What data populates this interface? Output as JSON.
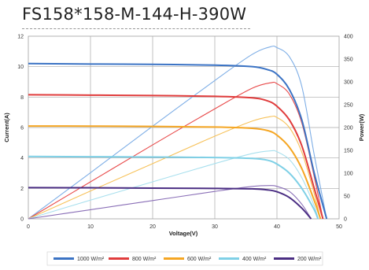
{
  "title": "FS158*158-M-144-H-390W",
  "chart_data": {
    "type": "line",
    "xlabel": "Voltage(V)",
    "ylabel_left": "Current(A)",
    "ylabel_right": "Power(W)",
    "xlim": [
      0,
      50
    ],
    "ylim_left": [
      0,
      12
    ],
    "ylim_right": [
      0,
      400
    ],
    "x_ticks": [
      0,
      10,
      20,
      30,
      40,
      50
    ],
    "y_ticks_left": [
      0,
      2,
      4,
      6,
      8,
      10,
      12
    ],
    "y_ticks_right": [
      0,
      50,
      100,
      150,
      200,
      250,
      300,
      350,
      400
    ],
    "grid": true,
    "legend_position": "bottom",
    "series": [
      {
        "name": "1000 W/m²",
        "color": "#3b73c4",
        "power_color": "#7eaee6",
        "current": [
          [
            0,
            10.2
          ],
          [
            10,
            10.17
          ],
          [
            20,
            10.15
          ],
          [
            30,
            10.1
          ],
          [
            36,
            10.0
          ],
          [
            38.5,
            9.8
          ],
          [
            40,
            9.5
          ],
          [
            42,
            8.5
          ],
          [
            44,
            6.5
          ],
          [
            46,
            3.0
          ],
          [
            48,
            0
          ]
        ],
        "power": [
          [
            0,
            0
          ],
          [
            10,
            101
          ],
          [
            20,
            203
          ],
          [
            30,
            303
          ],
          [
            36,
            360
          ],
          [
            39,
            377
          ],
          [
            40,
            375
          ],
          [
            42,
            355
          ],
          [
            44,
            290
          ],
          [
            46,
            140
          ],
          [
            48,
            0
          ]
        ]
      },
      {
        "name": "800 W/m²",
        "color": "#e03c3c",
        "power_color": "#e84a4a",
        "current": [
          [
            0,
            8.15
          ],
          [
            10,
            8.13
          ],
          [
            20,
            8.1
          ],
          [
            30,
            8.05
          ],
          [
            36,
            7.95
          ],
          [
            38.5,
            7.75
          ],
          [
            40,
            7.4
          ],
          [
            42,
            6.5
          ],
          [
            44,
            4.8
          ],
          [
            46,
            2.0
          ],
          [
            47.4,
            0
          ]
        ],
        "power": [
          [
            0,
            0
          ],
          [
            10,
            81
          ],
          [
            20,
            162
          ],
          [
            30,
            241
          ],
          [
            36,
            286
          ],
          [
            39,
            298
          ],
          [
            40,
            296
          ],
          [
            42,
            273
          ],
          [
            44,
            210
          ],
          [
            46,
            92
          ],
          [
            47.4,
            0
          ]
        ]
      },
      {
        "name": "600 W/m²",
        "color": "#f5a623",
        "power_color": "#f7c25a",
        "current": [
          [
            0,
            6.1
          ],
          [
            10,
            6.09
          ],
          [
            20,
            6.07
          ],
          [
            30,
            6.03
          ],
          [
            36,
            5.95
          ],
          [
            38.5,
            5.8
          ],
          [
            40,
            5.5
          ],
          [
            42,
            4.7
          ],
          [
            44,
            3.3
          ],
          [
            46,
            1.2
          ],
          [
            47,
            0
          ]
        ],
        "power": [
          [
            0,
            0
          ],
          [
            10,
            61
          ],
          [
            20,
            121
          ],
          [
            30,
            181
          ],
          [
            36,
            214
          ],
          [
            39,
            224
          ],
          [
            40,
            222
          ],
          [
            42,
            200
          ],
          [
            44,
            146
          ],
          [
            46,
            55
          ],
          [
            47,
            0
          ]
        ]
      },
      {
        "name": "400 W/m²",
        "color": "#7fd0e6",
        "power_color": "#a9e0ee",
        "current": [
          [
            0,
            4.1
          ],
          [
            10,
            4.08
          ],
          [
            20,
            4.06
          ],
          [
            30,
            4.03
          ],
          [
            36,
            3.97
          ],
          [
            38.5,
            3.85
          ],
          [
            40,
            3.6
          ],
          [
            42,
            3.0
          ],
          [
            44,
            2.0
          ],
          [
            46,
            0.6
          ],
          [
            46.6,
            0
          ]
        ],
        "power": [
          [
            0,
            0
          ],
          [
            10,
            41
          ],
          [
            20,
            81
          ],
          [
            30,
            121
          ],
          [
            36,
            143
          ],
          [
            39,
            149
          ],
          [
            40,
            147
          ],
          [
            42,
            130
          ],
          [
            44,
            90
          ],
          [
            46,
            28
          ],
          [
            46.6,
            0
          ]
        ]
      },
      {
        "name": "200 W/m²",
        "color": "#4b2e83",
        "power_color": "#8a6fb7",
        "current": [
          [
            0,
            2.05
          ],
          [
            10,
            2.04
          ],
          [
            20,
            2.02
          ],
          [
            30,
            2.0
          ],
          [
            36,
            1.97
          ],
          [
            38.5,
            1.9
          ],
          [
            40,
            1.78
          ],
          [
            42,
            1.4
          ],
          [
            44,
            0.7
          ],
          [
            45.5,
            0
          ]
        ],
        "power": [
          [
            0,
            0
          ],
          [
            10,
            20
          ],
          [
            20,
            40
          ],
          [
            30,
            60
          ],
          [
            36,
            71
          ],
          [
            39,
            73
          ],
          [
            40,
            71
          ],
          [
            42,
            60
          ],
          [
            44,
            32
          ],
          [
            45.5,
            0
          ]
        ]
      }
    ]
  }
}
